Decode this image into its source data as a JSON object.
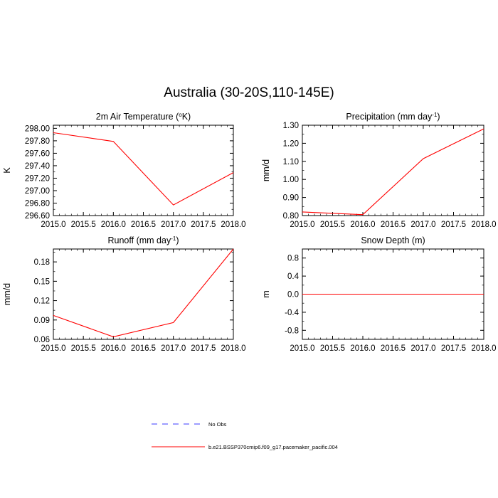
{
  "figure": {
    "title": "Australia (30-20S,110-145E)"
  },
  "legend": {
    "entries": [
      {
        "label": "No Obs",
        "color": "#3b3bff",
        "style": "dashed"
      },
      {
        "label": "b.e21.BSSP370cmip6.f09_g17.pacemaker_pacific.004",
        "color": "#ff0000",
        "style": "solid"
      }
    ]
  },
  "chart_data": [
    {
      "type": "line",
      "title": "2m Air Temperature (°K)",
      "xlabel": "",
      "ylabel": "K",
      "xlim": [
        2015.0,
        2018.0
      ],
      "ylim": [
        296.6,
        298.05
      ],
      "xticks": [
        "2015.0",
        "2015.5",
        "2016.0",
        "2016.5",
        "2017.0",
        "2017.5",
        "2018.0"
      ],
      "yticks": [
        "296.60",
        "296.80",
        "297.00",
        "297.20",
        "297.40",
        "297.60",
        "297.80",
        "298.00"
      ],
      "series": [
        {
          "color": "#ff0000",
          "x": [
            2015,
            2016,
            2017,
            2018
          ],
          "values": [
            297.93,
            297.79,
            296.77,
            297.29
          ]
        }
      ]
    },
    {
      "type": "line",
      "title": "Precipitation (mm day-1)",
      "xlabel": "",
      "ylabel": "mm/d",
      "xlim": [
        2015.0,
        2018.0
      ],
      "ylim": [
        0.8,
        1.3
      ],
      "xticks": [
        "2015.0",
        "2015.5",
        "2016.0",
        "2016.5",
        "2017.0",
        "2017.5",
        "2018.0"
      ],
      "yticks": [
        "0.80",
        "0.90",
        "1.00",
        "1.10",
        "1.20",
        "1.30"
      ],
      "series": [
        {
          "color": "#ff0000",
          "x": [
            2015,
            2016,
            2017,
            2018
          ],
          "values": [
            0.82,
            0.805,
            1.115,
            1.28
          ]
        }
      ]
    },
    {
      "type": "line",
      "title": "Runoff (mm day-1)",
      "xlabel": "",
      "ylabel": "mm/d",
      "xlim": [
        2015.0,
        2018.0
      ],
      "ylim": [
        0.06,
        0.2
      ],
      "xticks": [
        "2015.0",
        "2015.5",
        "2016.0",
        "2016.5",
        "2017.0",
        "2017.5",
        "2018.0"
      ],
      "yticks": [
        "0.06",
        "0.09",
        "0.12",
        "0.15",
        "0.18"
      ],
      "series": [
        {
          "color": "#ff0000",
          "x": [
            2015,
            2016,
            2017,
            2018
          ],
          "values": [
            0.097,
            0.064,
            0.086,
            0.2
          ]
        }
      ]
    },
    {
      "type": "line",
      "title": "Snow Depth (m)",
      "xlabel": "",
      "ylabel": "m",
      "xlim": [
        2015.0,
        2018.0
      ],
      "ylim": [
        -1.0,
        1.0
      ],
      "xticks": [
        "2015.0",
        "2015.5",
        "2016.0",
        "2016.5",
        "2017.0",
        "2017.5",
        "2018.0"
      ],
      "yticks": [
        "-0.8",
        "-0.4",
        "0.0",
        "0.4",
        "0.8"
      ],
      "series": [
        {
          "color": "#ff0000",
          "x": [
            2015,
            2016,
            2017,
            2018
          ],
          "values": [
            0.0,
            0.0,
            0.0,
            0.0
          ]
        }
      ]
    }
  ]
}
